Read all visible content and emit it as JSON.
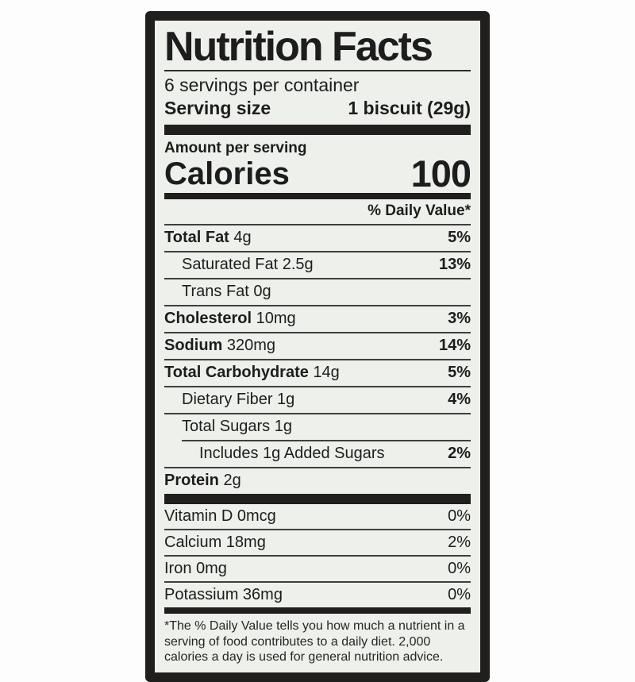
{
  "label": {
    "title": "Nutrition Facts",
    "servings_per_container": "6 servings per container",
    "serving_size_label": "Serving size",
    "serving_size_value": "1 biscuit (29g)",
    "amount_per_serving": "Amount per serving",
    "calories_label": "Calories",
    "calories_value": "100",
    "daily_value_header": "% Daily Value*",
    "nutrients": [
      {
        "bold": "Total Fat ",
        "rest": "4g",
        "pct": "5%"
      },
      {
        "bold": "",
        "rest": "Saturated Fat 2.5g",
        "pct": "13%"
      },
      {
        "bold": "",
        "rest": "Trans Fat 0g",
        "pct": ""
      },
      {
        "bold": "Cholesterol ",
        "rest": "10mg",
        "pct": "3%"
      },
      {
        "bold": "Sodium ",
        "rest": "320mg",
        "pct": "14%"
      },
      {
        "bold": "Total Carbohydrate ",
        "rest": "14g",
        "pct": "5%"
      },
      {
        "bold": "",
        "rest": "Dietary Fiber 1g",
        "pct": "4%"
      },
      {
        "bold": "",
        "rest": "Total Sugars 1g",
        "pct": ""
      },
      {
        "bold": "",
        "rest": "Includes 1g Added Sugars",
        "pct": "2%"
      },
      {
        "bold": "Protein ",
        "rest": "2g",
        "pct": ""
      }
    ],
    "micronutrients": [
      {
        "name": "Vitamin D 0mcg",
        "pct": "0%"
      },
      {
        "name": "Calcium 18mg",
        "pct": "2%"
      },
      {
        "name": "Iron 0mg",
        "pct": "0%"
      },
      {
        "name": "Potassium 36mg",
        "pct": "0%"
      }
    ],
    "footnote": "*The % Daily Value tells you how much a nutrient in a serving of food contributes to a daily diet. 2,000 calories a day is used for general nutrition advice.",
    "colors": {
      "label_background": "#eef0eb",
      "frame": "#201f1d",
      "text": "#1d1d1d"
    }
  }
}
